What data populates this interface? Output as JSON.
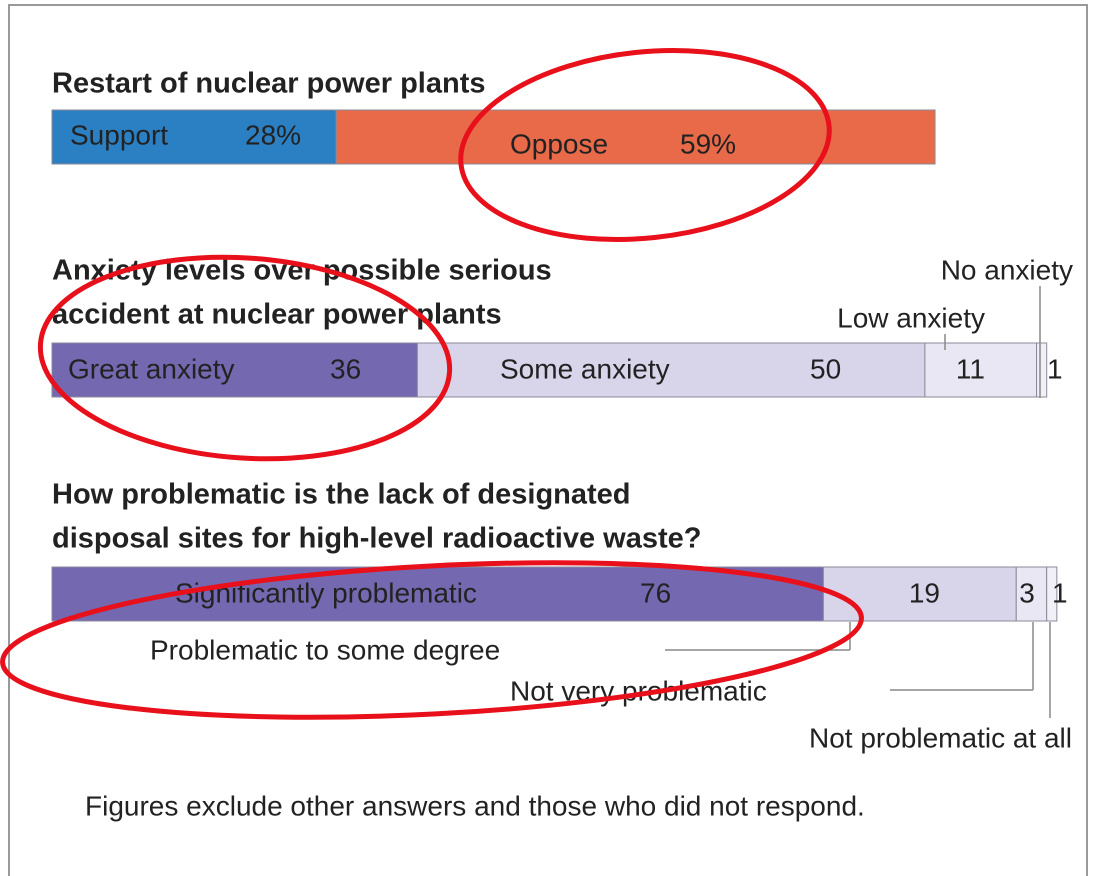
{
  "chart_data": [
    {
      "type": "stacked-bar",
      "title": [
        "Restart of nuclear power plants"
      ],
      "xlim": [
        0,
        100
      ],
      "series": [
        {
          "name": "Support",
          "color": "#2b7fc3",
          "values": [
            28
          ],
          "value_labels": [
            "28%"
          ]
        },
        {
          "name": "Oppose",
          "color": "#e86a48",
          "values": [
            59
          ],
          "value_labels": [
            "59%"
          ]
        }
      ]
    },
    {
      "type": "stacked-bar",
      "title": [
        "Anxiety levels over possible serious",
        "accident at nuclear power plants"
      ],
      "xlim": [
        0,
        100
      ],
      "series": [
        {
          "name": "Great anxiety",
          "color": "#7468b0",
          "values": [
            36
          ]
        },
        {
          "name": "Some anxiety",
          "color": "#d8d5ea",
          "values": [
            50
          ]
        },
        {
          "name": "Low anxiety",
          "color": "#e9e7f3",
          "values": [
            11
          ]
        },
        {
          "name": "No anxiety",
          "color": "#f1f0f7",
          "values": [
            1
          ]
        }
      ]
    },
    {
      "type": "stacked-bar",
      "title": [
        "How problematic is the lack of designated",
        "disposal sites for high-level radioactive waste?"
      ],
      "xlim": [
        0,
        100
      ],
      "series": [
        {
          "name": "Significantly problematic",
          "color": "#7468b0",
          "values": [
            76
          ]
        },
        {
          "name": "Problematic to some degree",
          "color": "#d8d5ea",
          "values": [
            19
          ]
        },
        {
          "name": "Not very problematic",
          "color": "#e9e7f3",
          "values": [
            3
          ]
        },
        {
          "name": "Not problematic at all",
          "color": "#f1f0f7",
          "values": [
            1
          ]
        }
      ]
    }
  ],
  "footnote": "Figures exclude other answers and those who did not respond."
}
